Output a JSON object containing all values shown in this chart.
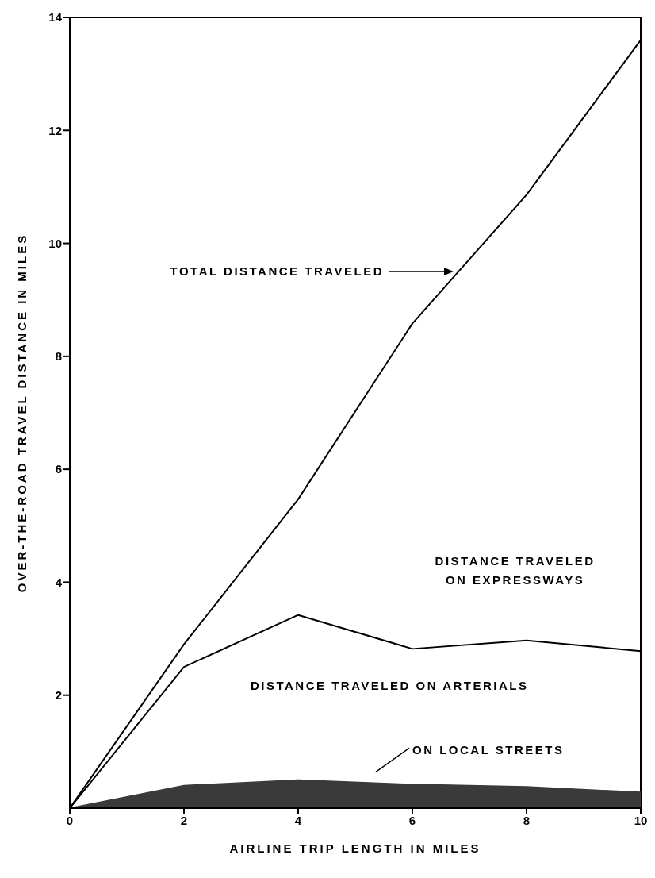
{
  "chart_data": {
    "type": "line",
    "xlabel": "AIRLINE TRIP LENGTH IN MILES",
    "ylabel": "OVER-THE-ROAD TRAVEL DISTANCE IN MILES",
    "x": [
      0,
      2,
      4,
      6,
      8,
      10
    ],
    "series": [
      {
        "color": "#000000",
        "values": [
          0,
          2.9,
          5.47,
          8.58,
          10.86,
          13.6
        ]
      },
      {
        "color": "#000000",
        "values": [
          0,
          2.5,
          3.42,
          2.82,
          2.97,
          2.78
        ]
      },
      {
        "type": "area",
        "color": "#3a3a3a",
        "values": [
          0,
          0.4,
          0.5,
          0.42,
          0.38,
          0.28
        ]
      }
    ],
    "annotations": [
      "TOTAL DISTANCE TRAVELED",
      "DISTANCE TRAVELED\nON EXPRESSWAYS",
      "DISTANCE TRAVELED ON ARTERIALS",
      "ON LOCAL STREETS"
    ],
    "xlim": [
      0,
      10
    ],
    "xticks": [
      0,
      2,
      4,
      6,
      8,
      10
    ],
    "ylim": [
      0,
      14
    ],
    "yticks": [
      2,
      4,
      6,
      8,
      10,
      12,
      14
    ],
    "marker": "none",
    "line_style": "solid"
  }
}
